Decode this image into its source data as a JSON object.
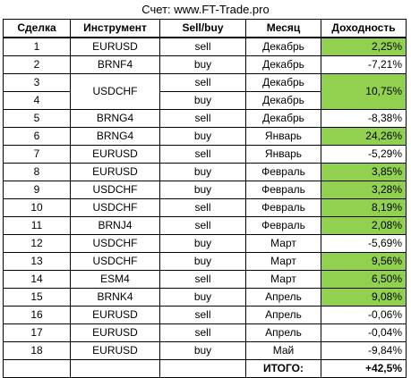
{
  "title": "Счет: www.FT-Trade.pro",
  "headers": {
    "trade": "Сделка",
    "instrument": "Инструмент",
    "side": "Sell/buy",
    "month": "Месяц",
    "yield": "Доходность"
  },
  "rows": [
    {
      "trade": "1",
      "instrument": "EURUSD",
      "side": "sell",
      "month": "Декабрь",
      "yield": "2,25%"
    },
    {
      "trade": "2",
      "instrument": "BRNF4",
      "side": "buy",
      "month": "Декабрь",
      "yield": "-7,21%"
    },
    {
      "trade": "3",
      "instrument": "USDCHF",
      "side": "sell",
      "month": "Декабрь",
      "yield": "10,75%"
    },
    {
      "trade": "4",
      "instrument": "",
      "side": "buy",
      "month": "Декабрь",
      "yield": ""
    },
    {
      "trade": "5",
      "instrument": "BRNG4",
      "side": "sell",
      "month": "Декабрь",
      "yield": "-8,38%"
    },
    {
      "trade": "6",
      "instrument": "BRNG4",
      "side": "buy",
      "month": "Январь",
      "yield": "24,26%"
    },
    {
      "trade": "7",
      "instrument": "EURUSD",
      "side": "sell",
      "month": "Январь",
      "yield": "-5,29%"
    },
    {
      "trade": "8",
      "instrument": "EURUSD",
      "side": "buy",
      "month": "Февраль",
      "yield": "3,85%"
    },
    {
      "trade": "9",
      "instrument": "USDCHF",
      "side": "buy",
      "month": "Февраль",
      "yield": "3,28%"
    },
    {
      "trade": "10",
      "instrument": "USDCHF",
      "side": "sell",
      "month": "Февраль",
      "yield": "8,19%"
    },
    {
      "trade": "11",
      "instrument": "BRNJ4",
      "side": "sell",
      "month": "Февраль",
      "yield": "2,08%"
    },
    {
      "trade": "12",
      "instrument": "USDCHF",
      "side": "buy",
      "month": "Март",
      "yield": "-5,69%"
    },
    {
      "trade": "13",
      "instrument": "USDCHF",
      "side": "buy",
      "month": "Март",
      "yield": "9,56%"
    },
    {
      "trade": "14",
      "instrument": "ESM4",
      "side": "sell",
      "month": "Март",
      "yield": "6,50%"
    },
    {
      "trade": "15",
      "instrument": "BRNK4",
      "side": "buy",
      "month": "Апрель",
      "yield": "9,08%"
    },
    {
      "trade": "16",
      "instrument": "EURUSD",
      "side": "sell",
      "month": "Апрель",
      "yield": "-0,06%"
    },
    {
      "trade": "17",
      "instrument": "EURUSD",
      "side": "sell",
      "month": "Апрель",
      "yield": "-0,04%"
    },
    {
      "trade": "18",
      "instrument": "EURUSD",
      "side": "buy",
      "month": "Май",
      "yield": "-9,84%"
    }
  ],
  "total": {
    "label": "ИТОГО:",
    "value": "+42,5%"
  },
  "colors": {
    "positive_fill": "#92d050"
  }
}
